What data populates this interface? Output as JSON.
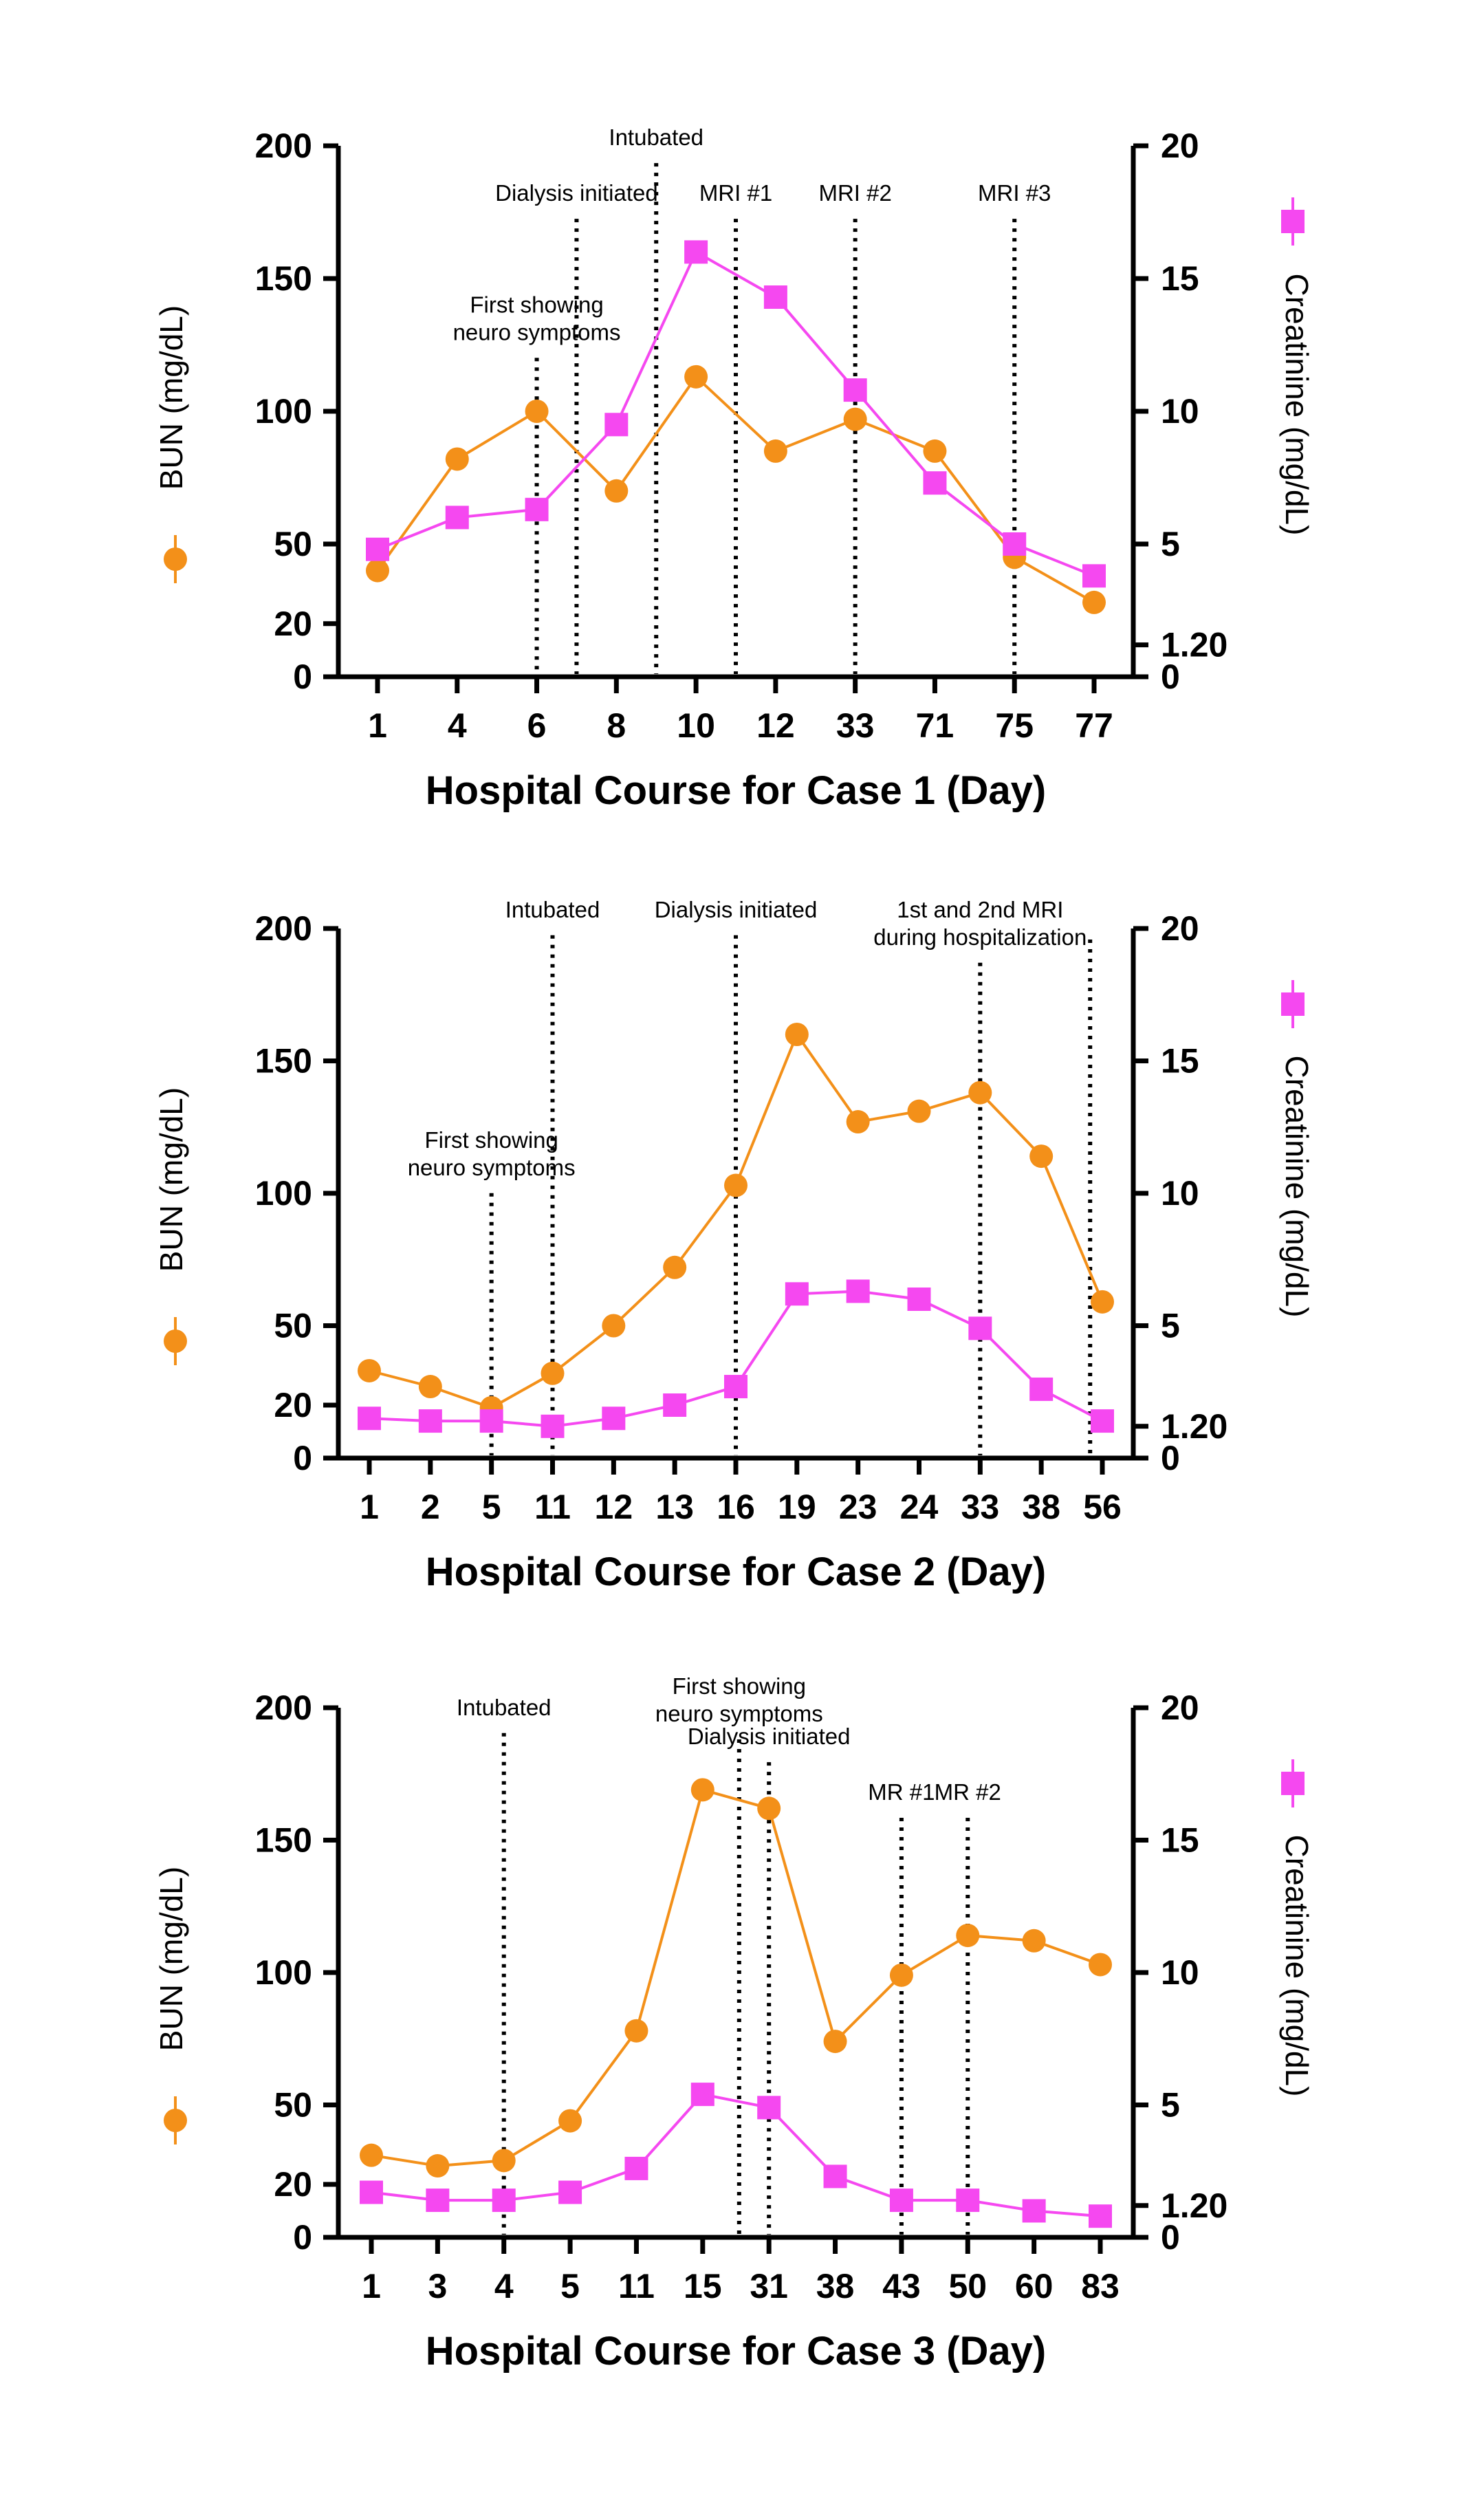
{
  "colors": {
    "bun": "#F39019",
    "creatinine": "#F548F0",
    "axis": "#000000"
  },
  "chart_data": [
    {
      "type": "line",
      "xlabel": "Hospital Course for Case 1 (Day)",
      "ylabel_left": "BUN (mg/dL)",
      "ylabel_right": "Creatinine (mg/dL)",
      "categories": [
        "1",
        "4",
        "6",
        "8",
        "10",
        "12",
        "33",
        "71",
        "75",
        "77"
      ],
      "ylim_left": [
        0,
        200
      ],
      "yticks_left": [
        "200",
        "150",
        "100",
        "50",
        "20",
        "0"
      ],
      "yticks_left_values": [
        200,
        150,
        100,
        50,
        20,
        0
      ],
      "ylim_right": [
        0,
        20
      ],
      "yticks_right": [
        "20",
        "15",
        "10",
        "5",
        "1.20",
        "0"
      ],
      "yticks_right_values": [
        20,
        15,
        10,
        5,
        1.2,
        0
      ],
      "series": [
        {
          "name": "BUN (mg/dL)",
          "axis": "left",
          "marker": "circle",
          "values": [
            40,
            82,
            100,
            70,
            113,
            85,
            97,
            85,
            45,
            28
          ]
        },
        {
          "name": "Creatinine (mg/dL)",
          "axis": "right",
          "marker": "square",
          "values": [
            4.8,
            6.0,
            6.3,
            9.5,
            16.0,
            14.3,
            10.8,
            7.3,
            5.0,
            3.8
          ]
        }
      ],
      "annotations": [
        {
          "text": [
            "First showing",
            "neuro symptoms"
          ],
          "x": 2.0,
          "label_top_value": 145
        },
        {
          "text": [
            "Dialysis initiated"
          ],
          "x": 2.5,
          "label_top_value": 187
        },
        {
          "text": [
            "Intubated"
          ],
          "x": 3.5,
          "label_top_value": 208
        },
        {
          "text": [
            "MRI #1"
          ],
          "x": 4.5,
          "label_top_value": 187
        },
        {
          "text": [
            "MRI #2"
          ],
          "x": 6.0,
          "label_top_value": 187
        },
        {
          "text": [
            "MRI #3"
          ],
          "x": 8.0,
          "label_top_value": 187
        }
      ]
    },
    {
      "type": "line",
      "xlabel": "Hospital Course for Case 2 (Day)",
      "ylabel_left": "BUN (mg/dL)",
      "ylabel_right": "Creatinine (mg/dL)",
      "categories": [
        "1",
        "2",
        "5",
        "11",
        "12",
        "13",
        "16",
        "19",
        "23",
        "24",
        "33",
        "38",
        "56"
      ],
      "ylim_left": [
        0,
        200
      ],
      "yticks_left": [
        "200",
        "150",
        "100",
        "50",
        "20",
        "0"
      ],
      "yticks_left_values": [
        200,
        150,
        100,
        50,
        20,
        0
      ],
      "ylim_right": [
        0,
        20
      ],
      "yticks_right": [
        "20",
        "15",
        "10",
        "5",
        "1.20",
        "0"
      ],
      "yticks_right_values": [
        20,
        15,
        10,
        5,
        1.2,
        0
      ],
      "series": [
        {
          "name": "BUN (mg/dL)",
          "axis": "left",
          "marker": "circle",
          "values": [
            33,
            27,
            19,
            32,
            50,
            72,
            103,
            160,
            127,
            131,
            138,
            114,
            59
          ]
        },
        {
          "name": "Creatinine (mg/dL)",
          "axis": "right",
          "marker": "square",
          "values": [
            1.5,
            1.4,
            1.4,
            1.2,
            1.5,
            2.0,
            2.7,
            6.2,
            6.3,
            6.0,
            4.9,
            2.6,
            1.4
          ]
        }
      ],
      "annotations": [
        {
          "text": [
            "First showing",
            "neuro symptoms"
          ],
          "x": 2.0,
          "label_top_value": 125
        },
        {
          "text": [
            "Intubated"
          ],
          "x": 3.0,
          "label_top_value": 212
        },
        {
          "text": [
            "Dialysis initiated"
          ],
          "x": 6.0,
          "label_top_value": 212
        },
        {
          "text": [
            "1st and 2nd MRI",
            "during hospitalization"
          ],
          "x": 10.0,
          "label_top_value": 212
        },
        {
          "text": [],
          "x": 11.8,
          "label_top_value": 200
        }
      ]
    },
    {
      "type": "line",
      "xlabel": "Hospital Course for Case 3 (Day)",
      "ylabel_left": "BUN (mg/dL)",
      "ylabel_right": "Creatinine (mg/dL)",
      "categories": [
        "1",
        "3",
        "4",
        "5",
        "11",
        "15",
        "31",
        "38",
        "43",
        "50",
        "60",
        "83"
      ],
      "ylim_left": [
        0,
        200
      ],
      "yticks_left": [
        "200",
        "150",
        "100",
        "50",
        "20",
        "0"
      ],
      "yticks_left_values": [
        200,
        150,
        100,
        50,
        20,
        0
      ],
      "ylim_right": [
        0,
        20
      ],
      "yticks_right": [
        "20",
        "15",
        "10",
        "5",
        "1.20",
        "0"
      ],
      "yticks_right_values": [
        20,
        15,
        10,
        5,
        1.2,
        0
      ],
      "series": [
        {
          "name": "BUN (mg/dL)",
          "axis": "left",
          "marker": "circle",
          "values": [
            31,
            27,
            29,
            44,
            78,
            169,
            162,
            74,
            99,
            114,
            112,
            103
          ]
        },
        {
          "name": "Creatinine (mg/dL)",
          "axis": "right",
          "marker": "square",
          "values": [
            1.7,
            1.4,
            1.4,
            1.7,
            2.6,
            5.4,
            4.9,
            2.3,
            1.4,
            1.4,
            1.0,
            0.8
          ]
        }
      ],
      "annotations": [
        {
          "text": [
            "Intubated"
          ],
          "x": 2.0,
          "label_top_value": 205
        },
        {
          "text": [
            "First showing",
            "neuro symptoms"
          ],
          "x": 5.55,
          "label_top_value": 213
        },
        {
          "text": [
            "Dialysis initiated"
          ],
          "x": 6.0,
          "label_top_value": 194
        },
        {
          "text": [
            "MR #1"
          ],
          "x": 8.0,
          "label_top_value": 173
        },
        {
          "text": [
            "MR #2"
          ],
          "x": 9.0,
          "label_top_value": 173
        }
      ]
    }
  ]
}
